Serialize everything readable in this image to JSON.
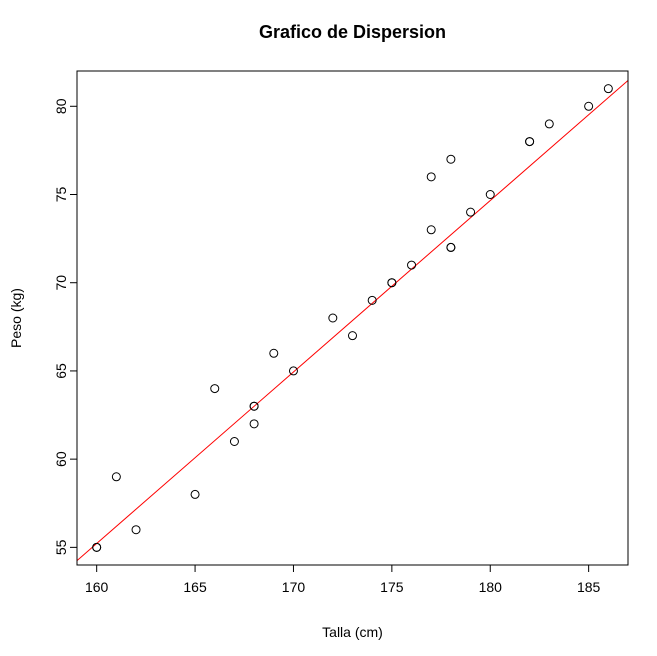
{
  "chart_data": {
    "type": "scatter",
    "title": "Grafico de Dispersion",
    "xlabel": "Talla (cm)",
    "ylabel": "Peso (kg)",
    "xlim": [
      159,
      187
    ],
    "ylim": [
      54,
      82
    ],
    "xticks": [
      160,
      165,
      170,
      175,
      180,
      185
    ],
    "yticks": [
      55,
      60,
      65,
      70,
      75,
      80
    ],
    "grid": false,
    "legend": "none",
    "point_color": "#000000",
    "line_color": "#ff0000",
    "points": [
      {
        "x": 160,
        "y": 55
      },
      {
        "x": 160,
        "y": 55
      },
      {
        "x": 161,
        "y": 59
      },
      {
        "x": 162,
        "y": 56
      },
      {
        "x": 165,
        "y": 58
      },
      {
        "x": 166,
        "y": 64
      },
      {
        "x": 167,
        "y": 61
      },
      {
        "x": 168,
        "y": 63
      },
      {
        "x": 168,
        "y": 63
      },
      {
        "x": 168,
        "y": 62
      },
      {
        "x": 169,
        "y": 66
      },
      {
        "x": 170,
        "y": 65
      },
      {
        "x": 172,
        "y": 68
      },
      {
        "x": 173,
        "y": 67
      },
      {
        "x": 174,
        "y": 69
      },
      {
        "x": 175,
        "y": 70
      },
      {
        "x": 175,
        "y": 70
      },
      {
        "x": 176,
        "y": 71
      },
      {
        "x": 177,
        "y": 73
      },
      {
        "x": 177,
        "y": 76
      },
      {
        "x": 178,
        "y": 77
      },
      {
        "x": 178,
        "y": 72
      },
      {
        "x": 178,
        "y": 72
      },
      {
        "x": 179,
        "y": 74
      },
      {
        "x": 180,
        "y": 75
      },
      {
        "x": 182,
        "y": 78
      },
      {
        "x": 182,
        "y": 78
      },
      {
        "x": 183,
        "y": 79
      },
      {
        "x": 185,
        "y": 80
      },
      {
        "x": 186,
        "y": 81
      }
    ],
    "fit_line": {
      "slope": 0.972,
      "intercept": -100.3
    }
  }
}
